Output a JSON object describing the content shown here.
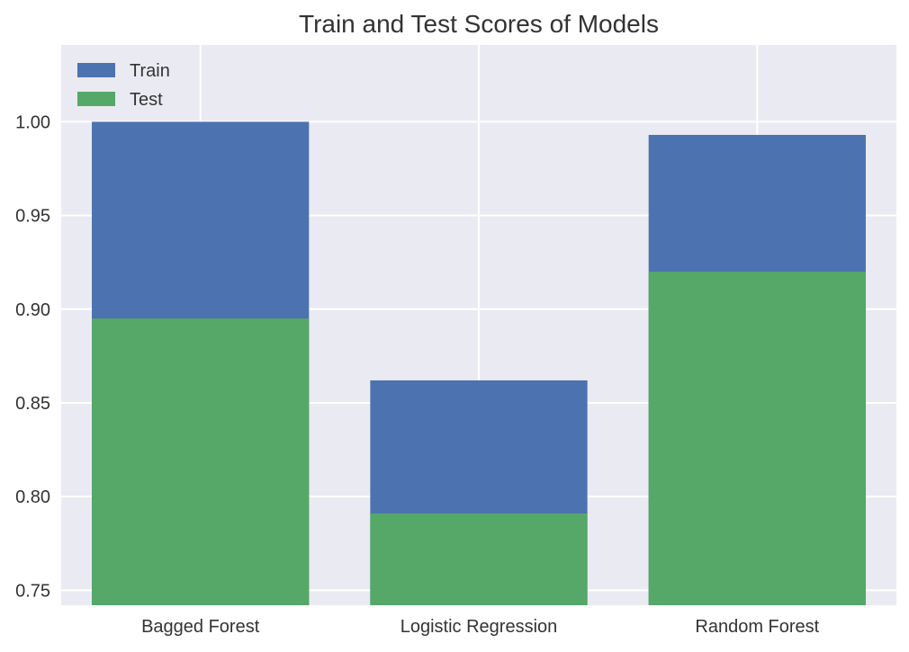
{
  "chart_data": {
    "type": "bar",
    "stacked_overlay": true,
    "title": "Train and Test Scores of Models",
    "xlabel": "",
    "ylabel": "",
    "categories": [
      "Bagged Forest",
      "Logistic Regression",
      "Random Forest"
    ],
    "series": [
      {
        "name": "Train",
        "values": [
          1.0,
          0.862,
          0.993
        ],
        "color": "#4c72b0"
      },
      {
        "name": "Test",
        "values": [
          0.895,
          0.791,
          0.92
        ],
        "color": "#55a868"
      }
    ],
    "ylim": [
      0.742,
      1.041
    ],
    "yticks": [
      "0.75",
      "0.80",
      "0.85",
      "0.90",
      "0.95",
      "1.00"
    ],
    "ytick_values": [
      0.75,
      0.8,
      0.85,
      0.9,
      0.95,
      1.0
    ],
    "grid": true,
    "legend_position": "top-left",
    "background_color": "#eaeaf2",
    "grid_color": "#ffffff"
  }
}
